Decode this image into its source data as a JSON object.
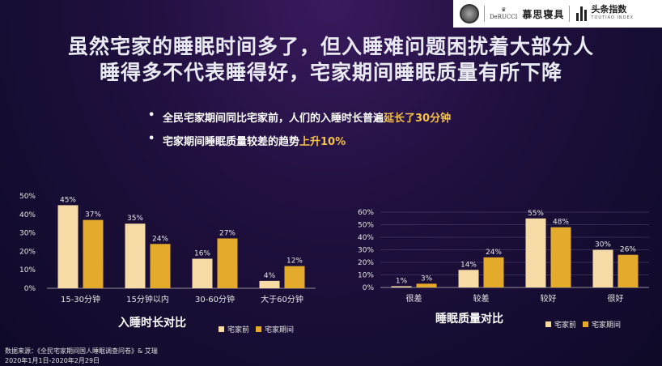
{
  "header": {
    "derucci_text": "DeRUCCI",
    "brand": "慕思寝具",
    "toutiao_cn": "头条指数",
    "toutiao_en": "TOUTIAO INDEX",
    "icons": [
      "derucci-seal-icon",
      "toutiao-bars-icon"
    ]
  },
  "title": {
    "line1": "虽然宅家的睡眠时间多了，但入睡难问题困扰着大部分人",
    "line2": "睡得多不代表睡得好，宅家期间睡眠质量有所下降"
  },
  "bullets": [
    {
      "text": "全民宅家期间同比宅家前，人们的入睡时长普遍",
      "highlight": "延长了30分钟"
    },
    {
      "text": "宅家期间睡眠质量较差的趋势",
      "highlight": "上升10%"
    }
  ],
  "colors": {
    "before": "#f6dba6",
    "during": "#e3aa2c"
  },
  "chart_data": [
    {
      "type": "bar",
      "title": "入睡时长对比",
      "categories": [
        "15-30分钟",
        "15分钟以内",
        "30-60分钟",
        "大于60分钟"
      ],
      "series": [
        {
          "name": "宅家前",
          "values": [
            45,
            35,
            16,
            4
          ]
        },
        {
          "name": "宅家期间",
          "values": [
            37,
            24,
            27,
            12
          ]
        }
      ],
      "ylim": [
        0,
        50
      ],
      "yticks": [
        "0%",
        "10%",
        "20%",
        "30%",
        "40%",
        "50%"
      ],
      "value_suffix": "%",
      "legend_position": "bottom-right"
    },
    {
      "type": "bar",
      "title": "睡眠质量对比",
      "categories": [
        "很差",
        "较差",
        "较好",
        "很好"
      ],
      "series": [
        {
          "name": "宅家前",
          "values": [
            1,
            14,
            55,
            30
          ]
        },
        {
          "name": "宅家期间",
          "values": [
            3,
            24,
            48,
            26
          ]
        }
      ],
      "ylim": [
        0,
        60
      ],
      "yticks": [
        "0%",
        "10%",
        "20%",
        "30%",
        "40%",
        "50%",
        "60%"
      ],
      "value_suffix": "%",
      "grid": true,
      "legend_position": "bottom-right"
    }
  ],
  "source": {
    "line1": "数据来源：《全民宅家期间国人睡眠调查问卷》& 艾瑞",
    "line2": "2020年1月1日-2020年2月29日"
  }
}
